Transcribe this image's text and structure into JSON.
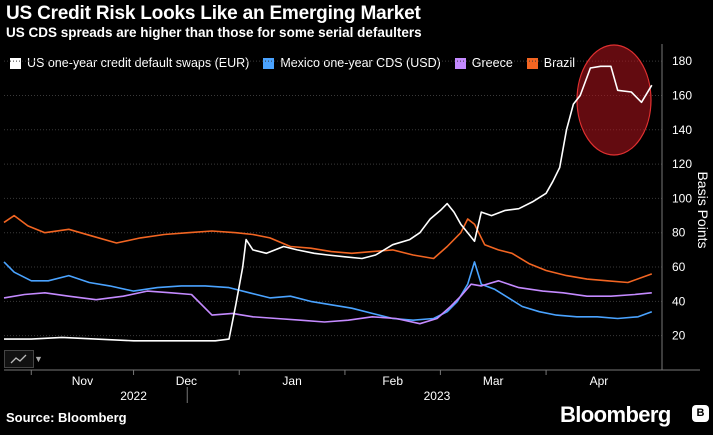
{
  "header": {
    "title": "US Credit Risk Looks Like an Emerging Market",
    "subtitle": "US CDS spreads are higher than those for some serial defaulters"
  },
  "footer": {
    "source": "Source: Bloomberg",
    "brand": "Bloomberg"
  },
  "chart_data": {
    "type": "line",
    "title": "US Credit Risk Looks Like an Emerging Market",
    "subtitle": "US CDS spreads are higher than those for some serial defaulters",
    "ylabel": "Basis Points",
    "xlabel": "",
    "ylim": [
      0,
      190
    ],
    "yticks": [
      20,
      40,
      60,
      80,
      100,
      120,
      140,
      160,
      180
    ],
    "x_range": [
      "2022-10-24",
      "2023-05-05"
    ],
    "month_ticks": [
      {
        "label": "Nov",
        "date": "2022-11-01"
      },
      {
        "label": "Dec",
        "date": "2022-12-01"
      },
      {
        "label": "Jan",
        "date": "2023-01-01"
      },
      {
        "label": "Feb",
        "date": "2023-02-01"
      },
      {
        "label": "Mar",
        "date": "2023-03-01"
      },
      {
        "label": "Apr",
        "date": "2023-04-01"
      }
    ],
    "year_labels": [
      {
        "label": "2022",
        "date": "2022-12-01"
      },
      {
        "label": "2023",
        "date": "2023-02-28"
      }
    ],
    "grid": true,
    "legend_position": "top-left",
    "annotation": {
      "shape": "ellipse",
      "color": "#e03030",
      "around": "US series peak, mid-April to early May 2023"
    },
    "series": [
      {
        "name": "US one-year credit default swaps (EUR)",
        "color": "#ffffff",
        "points": [
          [
            "2022-10-24",
            18
          ],
          [
            "2022-11-01",
            18
          ],
          [
            "2022-11-10",
            19
          ],
          [
            "2022-11-20",
            18
          ],
          [
            "2022-12-01",
            17
          ],
          [
            "2022-12-15",
            17
          ],
          [
            "2022-12-25",
            17
          ],
          [
            "2022-12-29",
            18
          ],
          [
            "2022-12-31",
            38
          ],
          [
            "2023-01-02",
            60
          ],
          [
            "2023-01-03",
            76
          ],
          [
            "2023-01-05",
            70
          ],
          [
            "2023-01-09",
            68
          ],
          [
            "2023-01-14",
            72
          ],
          [
            "2023-01-18",
            70
          ],
          [
            "2023-01-23",
            68
          ],
          [
            "2023-01-27",
            67
          ],
          [
            "2023-02-01",
            66
          ],
          [
            "2023-02-06",
            65
          ],
          [
            "2023-02-10",
            67
          ],
          [
            "2023-02-15",
            73
          ],
          [
            "2023-02-20",
            76
          ],
          [
            "2023-02-23",
            80
          ],
          [
            "2023-02-26",
            88
          ],
          [
            "2023-03-01",
            93
          ],
          [
            "2023-03-03",
            97
          ],
          [
            "2023-03-05",
            92
          ],
          [
            "2023-03-07",
            85
          ],
          [
            "2023-03-09",
            80
          ],
          [
            "2023-03-11",
            75
          ],
          [
            "2023-03-13",
            92
          ],
          [
            "2023-03-16",
            90
          ],
          [
            "2023-03-20",
            93
          ],
          [
            "2023-03-24",
            94
          ],
          [
            "2023-03-28",
            98
          ],
          [
            "2023-04-01",
            103
          ],
          [
            "2023-04-03",
            110
          ],
          [
            "2023-04-05",
            118
          ],
          [
            "2023-04-07",
            140
          ],
          [
            "2023-04-09",
            155
          ],
          [
            "2023-04-11",
            160
          ],
          [
            "2023-04-14",
            176
          ],
          [
            "2023-04-17",
            177
          ],
          [
            "2023-04-20",
            177
          ],
          [
            "2023-04-22",
            163
          ],
          [
            "2023-04-26",
            162
          ],
          [
            "2023-04-29",
            156
          ],
          [
            "2023-05-02",
            166
          ]
        ]
      },
      {
        "name": "Mexico one-year CDS (USD)",
        "color": "#4aa3ff",
        "points": [
          [
            "2022-10-24",
            63
          ],
          [
            "2022-10-27",
            57
          ],
          [
            "2022-11-01",
            52
          ],
          [
            "2022-11-06",
            52
          ],
          [
            "2022-11-12",
            55
          ],
          [
            "2022-11-18",
            51
          ],
          [
            "2022-11-24",
            49
          ],
          [
            "2022-12-01",
            46
          ],
          [
            "2022-12-08",
            48
          ],
          [
            "2022-12-15",
            49
          ],
          [
            "2022-12-22",
            49
          ],
          [
            "2022-12-29",
            48
          ],
          [
            "2023-01-04",
            45
          ],
          [
            "2023-01-10",
            42
          ],
          [
            "2023-01-16",
            43
          ],
          [
            "2023-01-22",
            40
          ],
          [
            "2023-01-28",
            38
          ],
          [
            "2023-02-03",
            36
          ],
          [
            "2023-02-09",
            33
          ],
          [
            "2023-02-15",
            30
          ],
          [
            "2023-02-21",
            29
          ],
          [
            "2023-02-27",
            30
          ],
          [
            "2023-03-03",
            34
          ],
          [
            "2023-03-06",
            40
          ],
          [
            "2023-03-09",
            50
          ],
          [
            "2023-03-11",
            63
          ],
          [
            "2023-03-13",
            50
          ],
          [
            "2023-03-17",
            47
          ],
          [
            "2023-03-21",
            42
          ],
          [
            "2023-03-25",
            37
          ],
          [
            "2023-03-30",
            34
          ],
          [
            "2023-04-04",
            32
          ],
          [
            "2023-04-10",
            31
          ],
          [
            "2023-04-16",
            31
          ],
          [
            "2023-04-22",
            30
          ],
          [
            "2023-04-28",
            31
          ],
          [
            "2023-05-02",
            34
          ]
        ]
      },
      {
        "name": "Greece",
        "color": "#c48aff",
        "points": [
          [
            "2022-10-24",
            42
          ],
          [
            "2022-10-30",
            44
          ],
          [
            "2022-11-05",
            45
          ],
          [
            "2022-11-12",
            43
          ],
          [
            "2022-11-20",
            41
          ],
          [
            "2022-11-28",
            43
          ],
          [
            "2022-12-05",
            46
          ],
          [
            "2022-12-12",
            45
          ],
          [
            "2022-12-18",
            44
          ],
          [
            "2022-12-24",
            32
          ],
          [
            "2022-12-30",
            33
          ],
          [
            "2023-01-05",
            31
          ],
          [
            "2023-01-12",
            30
          ],
          [
            "2023-01-19",
            29
          ],
          [
            "2023-01-26",
            28
          ],
          [
            "2023-02-02",
            29
          ],
          [
            "2023-02-09",
            31
          ],
          [
            "2023-02-16",
            30
          ],
          [
            "2023-02-23",
            27
          ],
          [
            "2023-02-28",
            30
          ],
          [
            "2023-03-04",
            37
          ],
          [
            "2023-03-07",
            43
          ],
          [
            "2023-03-10",
            50
          ],
          [
            "2023-03-13",
            49
          ],
          [
            "2023-03-18",
            52
          ],
          [
            "2023-03-24",
            48
          ],
          [
            "2023-03-31",
            46
          ],
          [
            "2023-04-06",
            45
          ],
          [
            "2023-04-13",
            43
          ],
          [
            "2023-04-20",
            43
          ],
          [
            "2023-04-27",
            44
          ],
          [
            "2023-05-02",
            45
          ]
        ]
      },
      {
        "name": "Brazil",
        "color": "#f26522",
        "points": [
          [
            "2022-10-24",
            86
          ],
          [
            "2022-10-27",
            90
          ],
          [
            "2022-10-31",
            84
          ],
          [
            "2022-11-05",
            80
          ],
          [
            "2022-11-12",
            82
          ],
          [
            "2022-11-19",
            78
          ],
          [
            "2022-11-26",
            74
          ],
          [
            "2022-12-03",
            77
          ],
          [
            "2022-12-10",
            79
          ],
          [
            "2022-12-17",
            80
          ],
          [
            "2022-12-24",
            81
          ],
          [
            "2022-12-31",
            80
          ],
          [
            "2023-01-05",
            79
          ],
          [
            "2023-01-10",
            77
          ],
          [
            "2023-01-16",
            72
          ],
          [
            "2023-01-22",
            71
          ],
          [
            "2023-01-28",
            69
          ],
          [
            "2023-02-03",
            68
          ],
          [
            "2023-02-09",
            69
          ],
          [
            "2023-02-15",
            70
          ],
          [
            "2023-02-21",
            67
          ],
          [
            "2023-02-27",
            65
          ],
          [
            "2023-03-03",
            72
          ],
          [
            "2023-03-07",
            80
          ],
          [
            "2023-03-09",
            88
          ],
          [
            "2023-03-11",
            85
          ],
          [
            "2023-03-14",
            73
          ],
          [
            "2023-03-18",
            70
          ],
          [
            "2023-03-22",
            68
          ],
          [
            "2023-03-27",
            62
          ],
          [
            "2023-04-01",
            58
          ],
          [
            "2023-04-07",
            55
          ],
          [
            "2023-04-13",
            53
          ],
          [
            "2023-04-19",
            52
          ],
          [
            "2023-04-25",
            51
          ],
          [
            "2023-05-02",
            56
          ]
        ]
      }
    ]
  }
}
